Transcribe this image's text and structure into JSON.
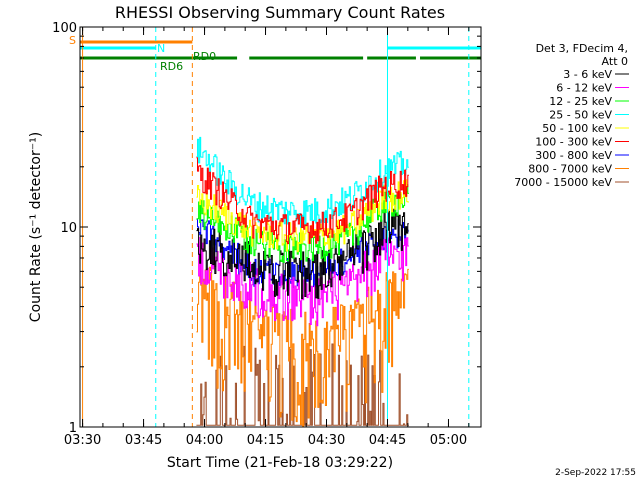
{
  "chart_data": {
    "type": "line",
    "title": "RHESSI Observing Summary Count Rates",
    "xlabel": "Start Time (21-Feb-18 03:29:22)",
    "ylabel": "Count Rate (s⁻¹ detector⁻¹)",
    "y_scale": "log",
    "ylim": [
      1,
      100
    ],
    "xlim": [
      "03:29:22",
      "05:08:00"
    ],
    "x_ticks": [
      "03:30",
      "03:45",
      "04:00",
      "04:15",
      "04:30",
      "04:45",
      "05:00"
    ],
    "y_ticks": [
      "1",
      "10",
      "100"
    ],
    "grid": false,
    "legend_placement": "right",
    "legend_header": [
      "Det 3, FDecim 4,",
      "Att 0"
    ],
    "footer_date": "2-Sep-2022 17:55",
    "series": [
      {
        "name": "3 - 6 keV",
        "color": "#000000",
        "times": [
          "03:58",
          "04:05",
          "04:12",
          "04:20",
          "04:28",
          "04:36",
          "04:44",
          "04:50"
        ],
        "values": [
          8.5,
          7.5,
          6.5,
          6.0,
          6.0,
          7.0,
          9.5,
          10.0
        ]
      },
      {
        "name": "6 - 12 keV",
        "color": "#ff00ff",
        "times": [
          "03:58",
          "04:05",
          "04:12",
          "04:20",
          "04:28",
          "04:36",
          "04:44",
          "04:50"
        ],
        "values": [
          7.0,
          6.0,
          5.0,
          4.5,
          4.5,
          5.0,
          7.0,
          7.5
        ]
      },
      {
        "name": "12 - 25 keV",
        "color": "#00ff00",
        "times": [
          "03:58",
          "04:05",
          "04:12",
          "04:20",
          "04:28",
          "04:36",
          "04:44",
          "04:50"
        ],
        "values": [
          12.0,
          10.0,
          8.5,
          8.0,
          8.0,
          9.0,
          13.0,
          14.0
        ]
      },
      {
        "name": "25 - 50 keV",
        "color": "#00ffff",
        "times": [
          "03:58",
          "04:05",
          "04:12",
          "04:20",
          "04:28",
          "04:36",
          "04:44",
          "04:50"
        ],
        "values": [
          25.0,
          17.0,
          13.0,
          12.0,
          12.0,
          14.0,
          19.0,
          21.0
        ]
      },
      {
        "name": "50 - 100 keV",
        "color": "#ffff00",
        "times": [
          "03:58",
          "04:05",
          "04:12",
          "04:20",
          "04:28",
          "04:36",
          "04:44",
          "04:50"
        ],
        "values": [
          14.0,
          11.5,
          9.5,
          9.0,
          9.0,
          10.0,
          14.0,
          15.0
        ]
      },
      {
        "name": "100 - 300 keV",
        "color": "#ff0000",
        "times": [
          "03:58",
          "04:05",
          "04:12",
          "04:20",
          "04:28",
          "04:36",
          "04:44",
          "04:50"
        ],
        "values": [
          19.0,
          14.0,
          10.5,
          10.0,
          10.0,
          11.5,
          16.0,
          17.0
        ]
      },
      {
        "name": "300 - 800 keV",
        "color": "#0000ff",
        "times": [
          "03:58",
          "04:05",
          "04:12",
          "04:20",
          "04:28",
          "04:36",
          "04:44",
          "04:50"
        ],
        "values": [
          10.0,
          8.0,
          6.0,
          6.0,
          6.0,
          7.0,
          9.0,
          9.5
        ]
      },
      {
        "name": "800 - 7000 keV",
        "color": "#ff8000",
        "times": [
          "03:58",
          "04:05",
          "04:12",
          "04:20",
          "04:28",
          "04:36",
          "04:44",
          "04:50"
        ],
        "values": [
          5.5,
          4.5,
          3.5,
          3.0,
          3.0,
          3.5,
          4.5,
          5.0
        ]
      },
      {
        "name": "7000 - 15000 keV",
        "color": "#a0522d",
        "times": [
          "03:58",
          "04:05",
          "04:12",
          "04:20",
          "04:28",
          "04:36",
          "04:44",
          "04:50"
        ],
        "values": [
          1.0,
          1.0,
          1.0,
          1.0,
          1.0,
          1.0,
          1.0,
          1.0
        ]
      }
    ],
    "status_bars": [
      {
        "label": "S",
        "color": "#ff8000",
        "segments": [
          [
            "03:29:22",
            "03:57:00"
          ]
        ]
      },
      {
        "label": "N",
        "color": "#00ffff",
        "segments": [
          [
            "03:29:22",
            "03:48:00"
          ],
          [
            "04:45:00",
            "05:08:00"
          ]
        ]
      },
      {
        "label": "RD6",
        "color": "#008000",
        "segments": [
          [
            "03:29:22",
            "04:08:00"
          ],
          [
            "04:11:00",
            "04:39:00"
          ],
          [
            "04:40:00",
            "04:52:00"
          ],
          [
            "04:53:00",
            "05:08:00"
          ]
        ]
      },
      {
        "label": "RD0",
        "color": "#008000",
        "segments": []
      }
    ],
    "vertical_lines": [
      {
        "time": "03:30:00",
        "color": "#ff8000",
        "style": "solid"
      },
      {
        "time": "03:48:00",
        "color": "#00ffff",
        "style": "dashed"
      },
      {
        "time": "03:57:00",
        "color": "#ff8000",
        "style": "dashed"
      },
      {
        "time": "04:45:00",
        "color": "#00ffff",
        "style": "solid"
      },
      {
        "time": "05:05:00",
        "color": "#00ffff",
        "style": "dashed"
      }
    ]
  }
}
